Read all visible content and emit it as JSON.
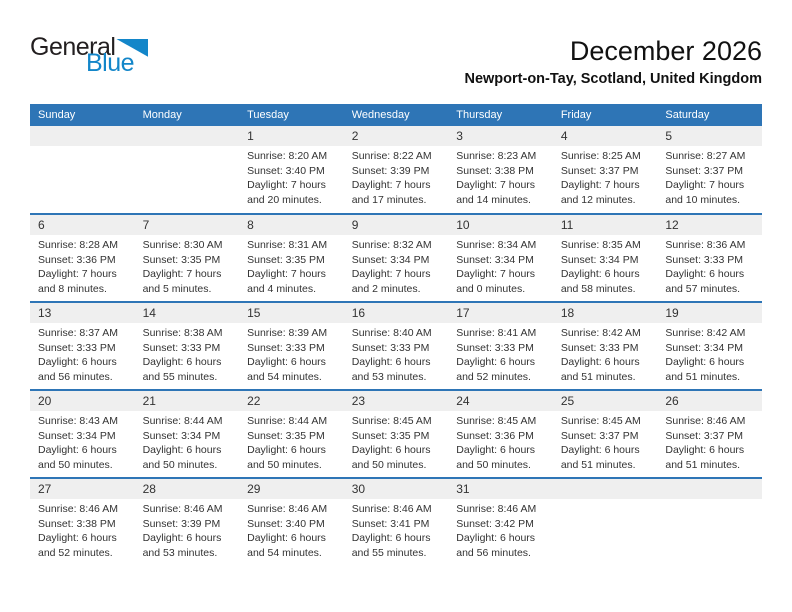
{
  "logo": {
    "part1": "General",
    "part2": "Blue"
  },
  "header": {
    "title": "December 2026",
    "subtitle": "Newport-on-Tay, Scotland, United Kingdom"
  },
  "colors": {
    "header_blue": "#2E75B6",
    "strip_gray": "#EFEFEF",
    "logo_blue": "#1386C9"
  },
  "calendar": {
    "day_headers": [
      "Sunday",
      "Monday",
      "Tuesday",
      "Wednesday",
      "Thursday",
      "Friday",
      "Saturday"
    ],
    "weeks": [
      [
        null,
        null,
        {
          "day": "1",
          "sunrise": "Sunrise: 8:20 AM",
          "sunset": "Sunset: 3:40 PM",
          "daylight_line1": "Daylight: 7 hours",
          "daylight_line2": "and 20 minutes."
        },
        {
          "day": "2",
          "sunrise": "Sunrise: 8:22 AM",
          "sunset": "Sunset: 3:39 PM",
          "daylight_line1": "Daylight: 7 hours",
          "daylight_line2": "and 17 minutes."
        },
        {
          "day": "3",
          "sunrise": "Sunrise: 8:23 AM",
          "sunset": "Sunset: 3:38 PM",
          "daylight_line1": "Daylight: 7 hours",
          "daylight_line2": "and 14 minutes."
        },
        {
          "day": "4",
          "sunrise": "Sunrise: 8:25 AM",
          "sunset": "Sunset: 3:37 PM",
          "daylight_line1": "Daylight: 7 hours",
          "daylight_line2": "and 12 minutes."
        },
        {
          "day": "5",
          "sunrise": "Sunrise: 8:27 AM",
          "sunset": "Sunset: 3:37 PM",
          "daylight_line1": "Daylight: 7 hours",
          "daylight_line2": "and 10 minutes."
        }
      ],
      [
        {
          "day": "6",
          "sunrise": "Sunrise: 8:28 AM",
          "sunset": "Sunset: 3:36 PM",
          "daylight_line1": "Daylight: 7 hours",
          "daylight_line2": "and 8 minutes."
        },
        {
          "day": "7",
          "sunrise": "Sunrise: 8:30 AM",
          "sunset": "Sunset: 3:35 PM",
          "daylight_line1": "Daylight: 7 hours",
          "daylight_line2": "and 5 minutes."
        },
        {
          "day": "8",
          "sunrise": "Sunrise: 8:31 AM",
          "sunset": "Sunset: 3:35 PM",
          "daylight_line1": "Daylight: 7 hours",
          "daylight_line2": "and 4 minutes."
        },
        {
          "day": "9",
          "sunrise": "Sunrise: 8:32 AM",
          "sunset": "Sunset: 3:34 PM",
          "daylight_line1": "Daylight: 7 hours",
          "daylight_line2": "and 2 minutes."
        },
        {
          "day": "10",
          "sunrise": "Sunrise: 8:34 AM",
          "sunset": "Sunset: 3:34 PM",
          "daylight_line1": "Daylight: 7 hours",
          "daylight_line2": "and 0 minutes."
        },
        {
          "day": "11",
          "sunrise": "Sunrise: 8:35 AM",
          "sunset": "Sunset: 3:34 PM",
          "daylight_line1": "Daylight: 6 hours",
          "daylight_line2": "and 58 minutes."
        },
        {
          "day": "12",
          "sunrise": "Sunrise: 8:36 AM",
          "sunset": "Sunset: 3:33 PM",
          "daylight_line1": "Daylight: 6 hours",
          "daylight_line2": "and 57 minutes."
        }
      ],
      [
        {
          "day": "13",
          "sunrise": "Sunrise: 8:37 AM",
          "sunset": "Sunset: 3:33 PM",
          "daylight_line1": "Daylight: 6 hours",
          "daylight_line2": "and 56 minutes."
        },
        {
          "day": "14",
          "sunrise": "Sunrise: 8:38 AM",
          "sunset": "Sunset: 3:33 PM",
          "daylight_line1": "Daylight: 6 hours",
          "daylight_line2": "and 55 minutes."
        },
        {
          "day": "15",
          "sunrise": "Sunrise: 8:39 AM",
          "sunset": "Sunset: 3:33 PM",
          "daylight_line1": "Daylight: 6 hours",
          "daylight_line2": "and 54 minutes."
        },
        {
          "day": "16",
          "sunrise": "Sunrise: 8:40 AM",
          "sunset": "Sunset: 3:33 PM",
          "daylight_line1": "Daylight: 6 hours",
          "daylight_line2": "and 53 minutes."
        },
        {
          "day": "17",
          "sunrise": "Sunrise: 8:41 AM",
          "sunset": "Sunset: 3:33 PM",
          "daylight_line1": "Daylight: 6 hours",
          "daylight_line2": "and 52 minutes."
        },
        {
          "day": "18",
          "sunrise": "Sunrise: 8:42 AM",
          "sunset": "Sunset: 3:33 PM",
          "daylight_line1": "Daylight: 6 hours",
          "daylight_line2": "and 51 minutes."
        },
        {
          "day": "19",
          "sunrise": "Sunrise: 8:42 AM",
          "sunset": "Sunset: 3:34 PM",
          "daylight_line1": "Daylight: 6 hours",
          "daylight_line2": "and 51 minutes."
        }
      ],
      [
        {
          "day": "20",
          "sunrise": "Sunrise: 8:43 AM",
          "sunset": "Sunset: 3:34 PM",
          "daylight_line1": "Daylight: 6 hours",
          "daylight_line2": "and 50 minutes."
        },
        {
          "day": "21",
          "sunrise": "Sunrise: 8:44 AM",
          "sunset": "Sunset: 3:34 PM",
          "daylight_line1": "Daylight: 6 hours",
          "daylight_line2": "and 50 minutes."
        },
        {
          "day": "22",
          "sunrise": "Sunrise: 8:44 AM",
          "sunset": "Sunset: 3:35 PM",
          "daylight_line1": "Daylight: 6 hours",
          "daylight_line2": "and 50 minutes."
        },
        {
          "day": "23",
          "sunrise": "Sunrise: 8:45 AM",
          "sunset": "Sunset: 3:35 PM",
          "daylight_line1": "Daylight: 6 hours",
          "daylight_line2": "and 50 minutes."
        },
        {
          "day": "24",
          "sunrise": "Sunrise: 8:45 AM",
          "sunset": "Sunset: 3:36 PM",
          "daylight_line1": "Daylight: 6 hours",
          "daylight_line2": "and 50 minutes."
        },
        {
          "day": "25",
          "sunrise": "Sunrise: 8:45 AM",
          "sunset": "Sunset: 3:37 PM",
          "daylight_line1": "Daylight: 6 hours",
          "daylight_line2": "and 51 minutes."
        },
        {
          "day": "26",
          "sunrise": "Sunrise: 8:46 AM",
          "sunset": "Sunset: 3:37 PM",
          "daylight_line1": "Daylight: 6 hours",
          "daylight_line2": "and 51 minutes."
        }
      ],
      [
        {
          "day": "27",
          "sunrise": "Sunrise: 8:46 AM",
          "sunset": "Sunset: 3:38 PM",
          "daylight_line1": "Daylight: 6 hours",
          "daylight_line2": "and 52 minutes."
        },
        {
          "day": "28",
          "sunrise": "Sunrise: 8:46 AM",
          "sunset": "Sunset: 3:39 PM",
          "daylight_line1": "Daylight: 6 hours",
          "daylight_line2": "and 53 minutes."
        },
        {
          "day": "29",
          "sunrise": "Sunrise: 8:46 AM",
          "sunset": "Sunset: 3:40 PM",
          "daylight_line1": "Daylight: 6 hours",
          "daylight_line2": "and 54 minutes."
        },
        {
          "day": "30",
          "sunrise": "Sunrise: 8:46 AM",
          "sunset": "Sunset: 3:41 PM",
          "daylight_line1": "Daylight: 6 hours",
          "daylight_line2": "and 55 minutes."
        },
        {
          "day": "31",
          "sunrise": "Sunrise: 8:46 AM",
          "sunset": "Sunset: 3:42 PM",
          "daylight_line1": "Daylight: 6 hours",
          "daylight_line2": "and 56 minutes."
        },
        null,
        null
      ]
    ]
  }
}
